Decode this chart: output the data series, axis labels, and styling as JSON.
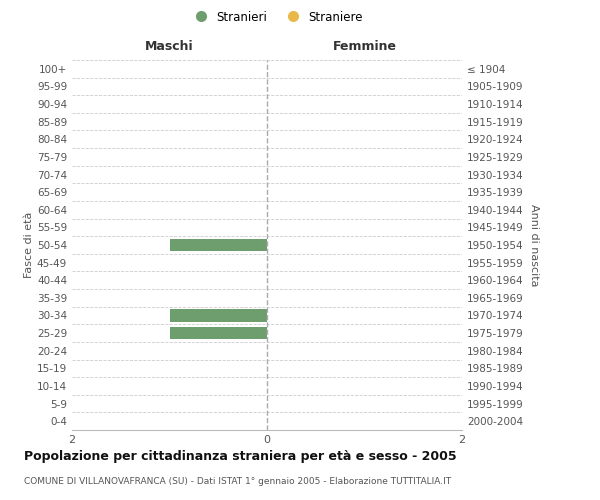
{
  "age_groups": [
    "0-4",
    "5-9",
    "10-14",
    "15-19",
    "20-24",
    "25-29",
    "30-34",
    "35-39",
    "40-44",
    "45-49",
    "50-54",
    "55-59",
    "60-64",
    "65-69",
    "70-74",
    "75-79",
    "80-84",
    "85-89",
    "90-94",
    "95-99",
    "100+"
  ],
  "birth_years": [
    "2000-2004",
    "1995-1999",
    "1990-1994",
    "1985-1989",
    "1980-1984",
    "1975-1979",
    "1970-1974",
    "1965-1969",
    "1960-1964",
    "1955-1959",
    "1950-1954",
    "1945-1949",
    "1940-1944",
    "1935-1939",
    "1930-1934",
    "1925-1929",
    "1920-1924",
    "1915-1919",
    "1910-1914",
    "1905-1909",
    "≤ 1904"
  ],
  "males_stranieri": [
    0,
    0,
    0,
    0,
    0,
    1,
    1,
    0,
    0,
    0,
    1,
    0,
    0,
    0,
    0,
    0,
    0,
    0,
    0,
    0,
    0
  ],
  "females_straniere": [
    0,
    0,
    0,
    0,
    0,
    0,
    0,
    0,
    0,
    0,
    0,
    0,
    0,
    0,
    0,
    0,
    0,
    0,
    0,
    0,
    0
  ],
  "color_stranieri": "#6e9e6e",
  "color_straniere": "#e8b84b",
  "xlim": 2,
  "title_main": "Popolazione per cittadinanza straniera per età e sesso - 2005",
  "title_sub": "COMUNE DI VILLANOVAFRANCA (SU) - Dati ISTAT 1° gennaio 2005 - Elaborazione TUTTITALIA.IT",
  "label_maschi": "Maschi",
  "label_femmine": "Femmine",
  "label_stranieri": "Stranieri",
  "label_straniere": "Straniere",
  "ylabel_left": "Fasce di età",
  "ylabel_right": "Anni di nascita",
  "background_color": "#ffffff",
  "grid_color": "#cccccc",
  "bar_height": 0.7
}
